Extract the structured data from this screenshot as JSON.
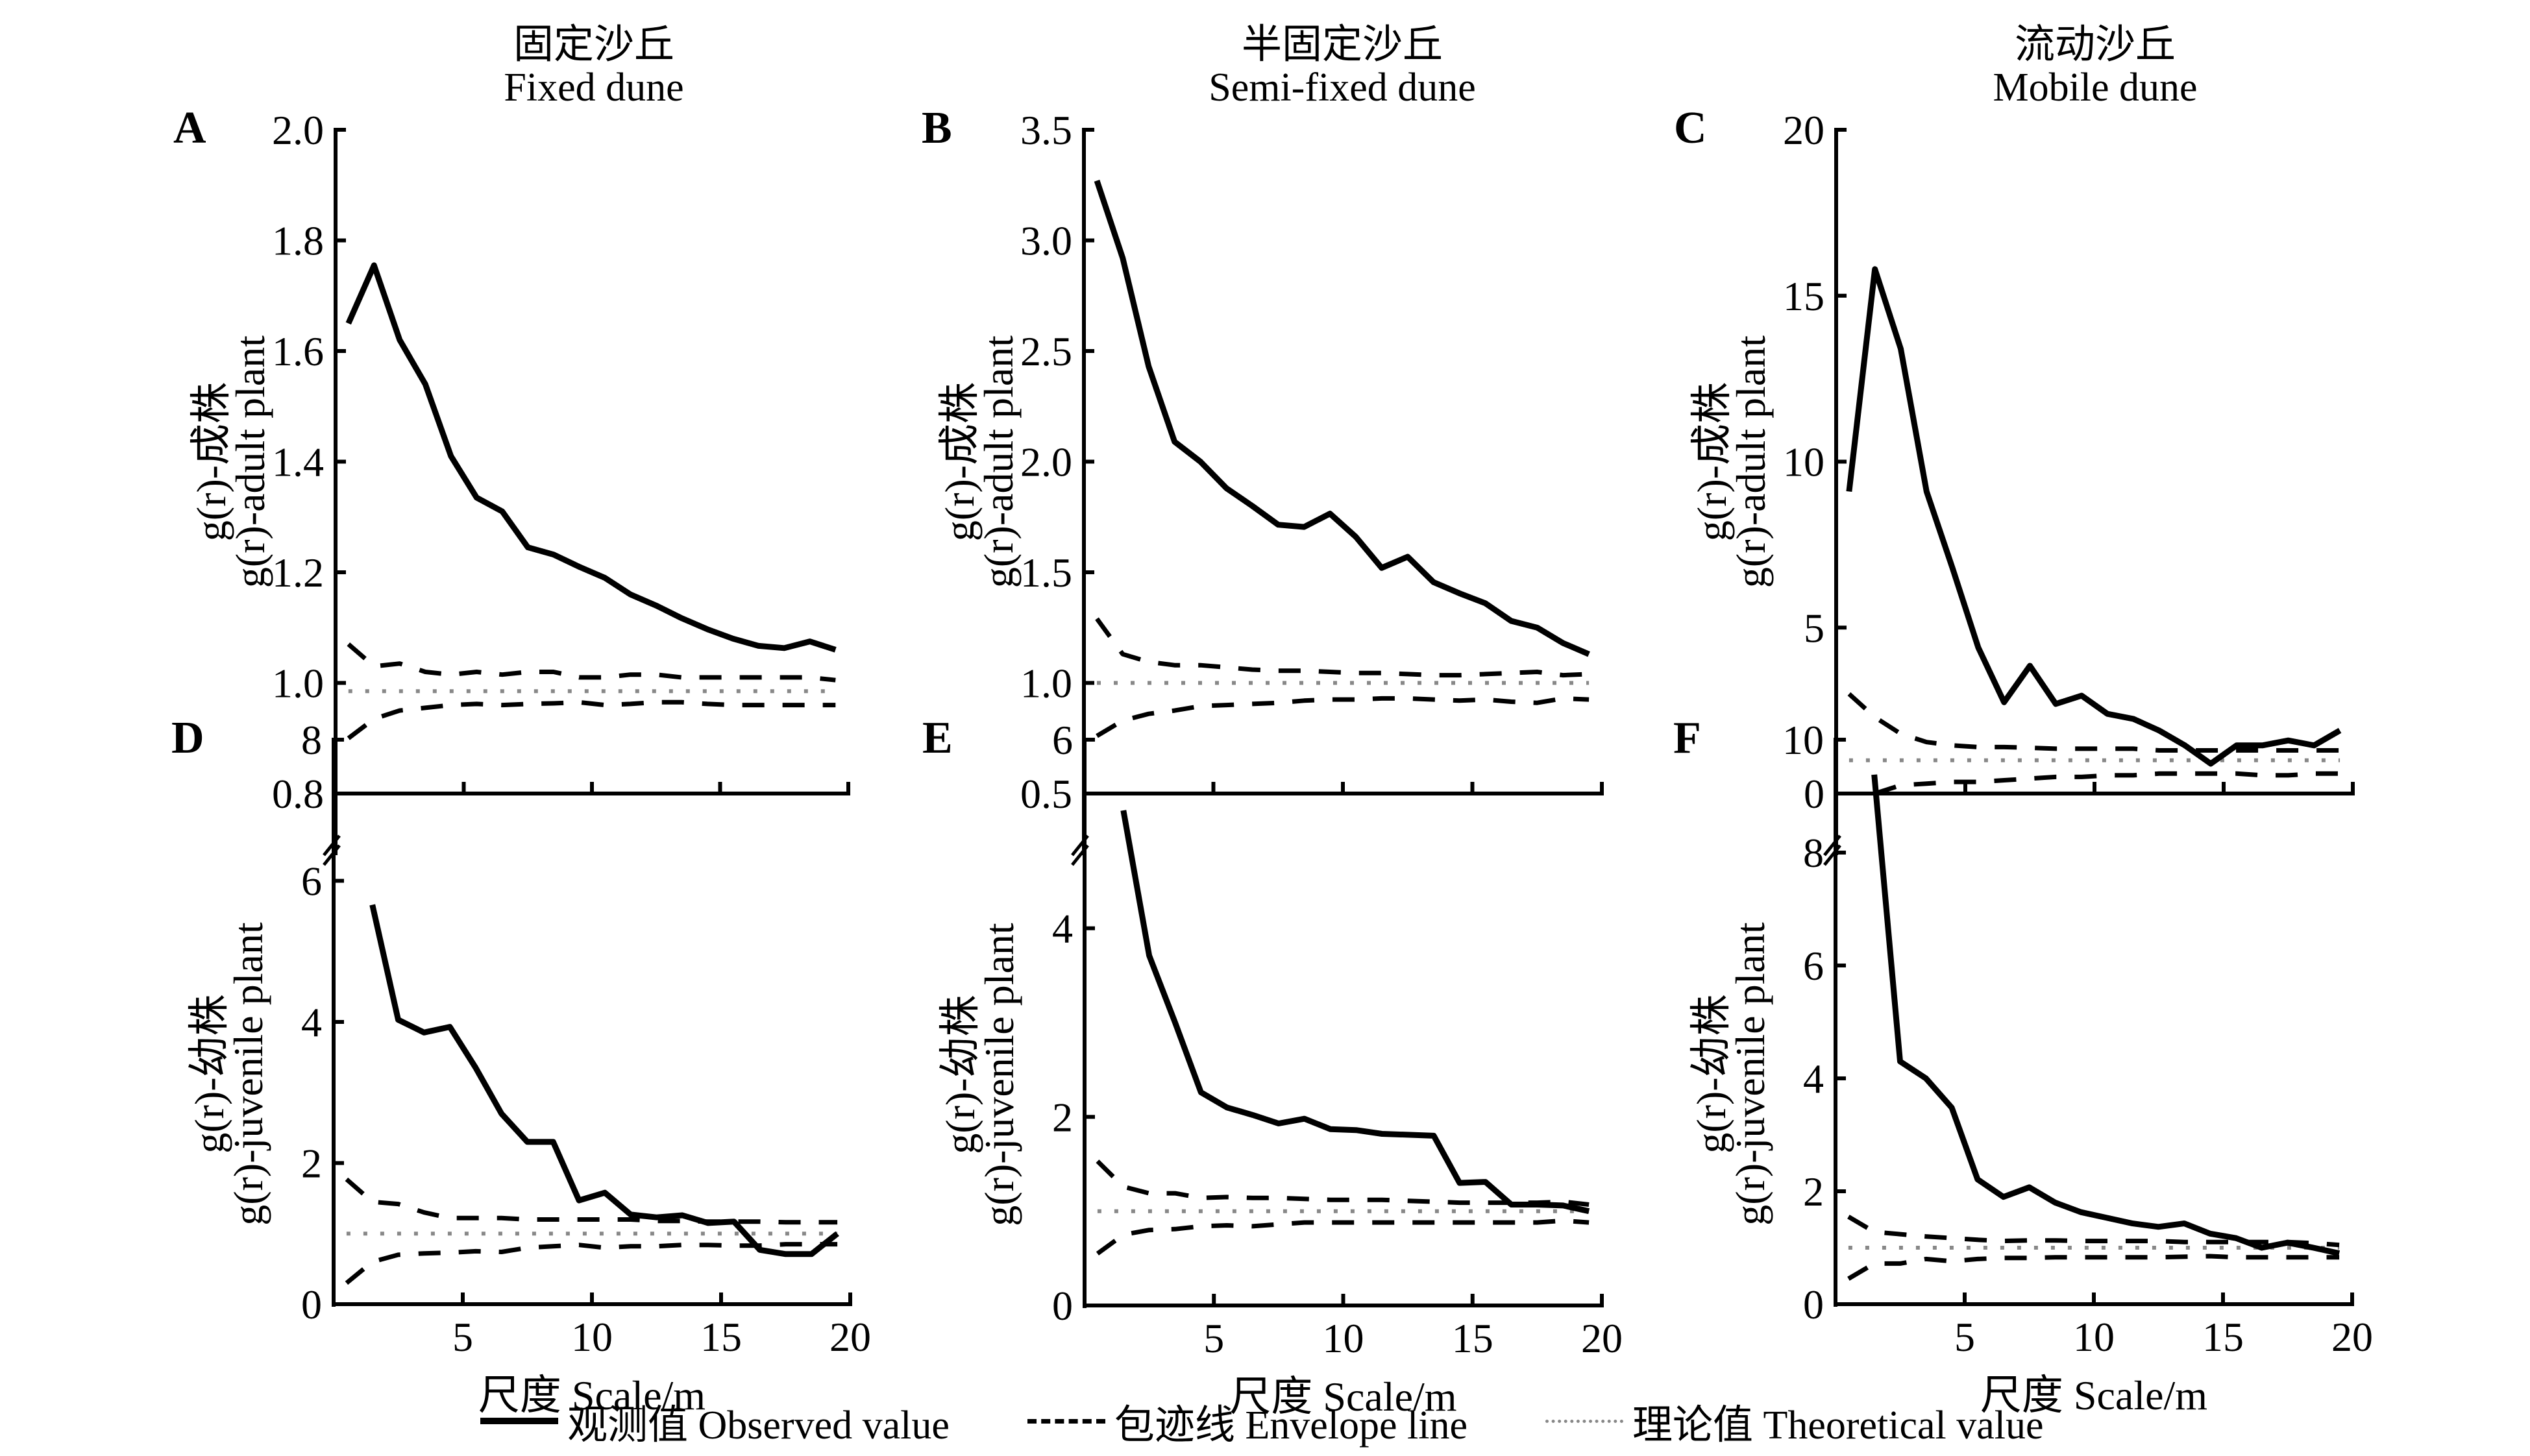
{
  "column_titles": [
    {
      "zh": "固定沙丘",
      "en": "Fixed dune"
    },
    {
      "zh": "半固定沙丘",
      "en": "Semi-fixed dune"
    },
    {
      "zh": "流动沙丘",
      "en": "Mobile dune"
    }
  ],
  "xlabel": "尺度 Scale/m",
  "legend": [
    {
      "key": "observed",
      "label": "观测值 Observed value",
      "style": "solid"
    },
    {
      "key": "envelope",
      "label": "包迹线 Envelope line",
      "style": "dashed"
    },
    {
      "key": "theoretical",
      "label": "理论值 Theoretical value",
      "style": "dotted"
    }
  ],
  "colors": {
    "observed": "#000000",
    "envelope": "#000000",
    "theoretical": "#888888"
  },
  "chart_data": [
    {
      "panel": "A",
      "type": "line",
      "title": "Fixed dune",
      "ylabel_zh": "g(r)-成株",
      "ylabel_en": "g(r)-adult plant",
      "xlabel": "尺度 Scale/m",
      "xlim": [
        0,
        20
      ],
      "xticks": [
        5,
        10,
        15,
        20
      ],
      "ylim": [
        0.8,
        2.0
      ],
      "yticks": [
        "0.8",
        "1.0",
        "1.2",
        "1.4",
        "1.6",
        "1.8",
        "2.0"
      ],
      "x": [
        0.5,
        1.5,
        2.5,
        3.5,
        4.5,
        5.5,
        6.5,
        7.5,
        8.5,
        9.5,
        10.5,
        11.5,
        12.5,
        13.5,
        14.5,
        15.5,
        16.5,
        17.5,
        18.5,
        19.5
      ],
      "series": [
        {
          "name": "Observed value",
          "values": [
            1.65,
            1.755,
            1.62,
            1.54,
            1.41,
            1.335,
            1.31,
            1.245,
            1.232,
            1.21,
            1.19,
            1.16,
            1.14,
            1.117,
            1.097,
            1.08,
            1.067,
            1.063,
            1.075,
            1.06
          ]
        },
        {
          "name": "Envelope upper",
          "values": [
            1.07,
            1.03,
            1.035,
            1.02,
            1.015,
            1.02,
            1.015,
            1.02,
            1.02,
            1.01,
            1.01,
            1.015,
            1.015,
            1.01,
            1.01,
            1.01,
            1.01,
            1.01,
            1.01,
            1.005
          ]
        },
        {
          "name": "Envelope lower",
          "values": [
            0.9,
            0.935,
            0.95,
            0.955,
            0.96,
            0.962,
            0.96,
            0.962,
            0.963,
            0.965,
            0.96,
            0.962,
            0.965,
            0.965,
            0.962,
            0.96,
            0.96,
            0.96,
            0.96,
            0.96
          ]
        },
        {
          "name": "Theoretical value",
          "values": [
            0.985,
            0.985,
            0.985,
            0.985,
            0.985,
            0.985,
            0.985,
            0.985,
            0.985,
            0.985,
            0.985,
            0.985,
            0.985,
            0.985,
            0.985,
            0.985,
            0.985,
            0.985,
            0.985,
            0.985
          ]
        }
      ]
    },
    {
      "panel": "B",
      "type": "line",
      "title": "Semi-fixed dune",
      "ylabel_zh": "g(r)-成株",
      "ylabel_en": "g(r)-adult plant",
      "xlabel": "尺度 Scale/m",
      "xlim": [
        0,
        20
      ],
      "xticks": [
        5,
        10,
        15,
        20
      ],
      "ylim": [
        0.5,
        3.5
      ],
      "yticks": [
        "0.5",
        "1.0",
        "1.5",
        "2.0",
        "2.5",
        "3.0",
        "3.5"
      ],
      "x": [
        0.5,
        1.5,
        2.5,
        3.5,
        4.5,
        5.5,
        6.5,
        7.5,
        8.5,
        9.5,
        10.5,
        11.5,
        12.5,
        13.5,
        14.5,
        15.5,
        16.5,
        17.5,
        18.5,
        19.5
      ],
      "series": [
        {
          "name": "Observed value",
          "values": [
            3.27,
            2.92,
            2.43,
            2.09,
            2.0,
            1.88,
            1.8,
            1.715,
            1.705,
            1.765,
            1.66,
            1.52,
            1.57,
            1.455,
            1.405,
            1.36,
            1.28,
            1.25,
            1.18,
            1.13
          ]
        },
        {
          "name": "Envelope upper",
          "values": [
            1.29,
            1.13,
            1.095,
            1.08,
            1.08,
            1.07,
            1.06,
            1.055,
            1.055,
            1.05,
            1.045,
            1.045,
            1.04,
            1.035,
            1.035,
            1.04,
            1.045,
            1.05,
            1.035,
            1.04
          ]
        },
        {
          "name": "Envelope lower",
          "values": [
            0.76,
            0.83,
            0.86,
            0.875,
            0.895,
            0.9,
            0.905,
            0.91,
            0.92,
            0.925,
            0.925,
            0.93,
            0.93,
            0.925,
            0.92,
            0.925,
            0.915,
            0.91,
            0.93,
            0.925
          ]
        },
        {
          "name": "Theoretical value",
          "values": [
            1,
            1,
            1,
            1,
            1,
            1,
            1,
            1,
            1,
            1,
            1,
            1,
            1,
            1,
            1,
            1,
            1,
            1,
            1,
            1
          ]
        }
      ]
    },
    {
      "panel": "C",
      "type": "line",
      "title": "Mobile dune",
      "ylabel_zh": "g(r)-成株",
      "ylabel_en": "g(r)-adult plant",
      "xlabel": "尺度 Scale/m",
      "xlim": [
        0,
        20
      ],
      "xticks": [
        5,
        10,
        15,
        20
      ],
      "ylim": [
        0,
        20
      ],
      "yticks": [
        "0",
        "5",
        "10",
        "15",
        "20"
      ],
      "x": [
        0.5,
        1.5,
        2.5,
        3.5,
        4.5,
        5.5,
        6.5,
        7.5,
        8.5,
        9.5,
        10.5,
        11.5,
        12.5,
        13.5,
        14.5,
        15.5,
        16.5,
        17.5,
        18.5,
        19.5
      ],
      "series": [
        {
          "name": "Observed value",
          "values": [
            9.1,
            15.8,
            13.4,
            9.1,
            6.8,
            4.4,
            2.75,
            3.85,
            2.7,
            2.95,
            2.4,
            2.25,
            1.9,
            1.45,
            0.9,
            1.45,
            1.45,
            1.6,
            1.45,
            1.9
          ]
        },
        {
          "name": "Envelope upper",
          "values": [
            3.0,
            2.3,
            1.8,
            1.55,
            1.45,
            1.4,
            1.4,
            1.38,
            1.35,
            1.35,
            1.35,
            1.35,
            1.3,
            1.3,
            1.3,
            1.3,
            1.3,
            1.3,
            1.3,
            1.3
          ]
        },
        {
          "name": "Envelope lower",
          "values": [
            null,
            0.0,
            0.25,
            0.3,
            0.35,
            0.35,
            0.4,
            0.45,
            0.5,
            0.5,
            0.55,
            0.55,
            0.6,
            0.6,
            0.6,
            0.6,
            0.55,
            0.55,
            0.6,
            0.6
          ]
        },
        {
          "name": "Theoretical value",
          "values": [
            1,
            1,
            1,
            1,
            1,
            1,
            1,
            1,
            1,
            1,
            1,
            1,
            1,
            1,
            1,
            1,
            1,
            1,
            1,
            1
          ]
        }
      ]
    },
    {
      "panel": "D",
      "type": "line",
      "title": "",
      "ylabel_zh": "g(r)-幼株",
      "ylabel_en": "g(r)-juvenile plant",
      "xlabel": "尺度 Scale/m",
      "xlim": [
        0,
        20
      ],
      "xticks": [
        5,
        10,
        15,
        20
      ],
      "ylim": [
        0,
        8
      ],
      "yticks": [
        "0",
        "2",
        "4",
        "6",
        "8"
      ],
      "x": [
        0.5,
        1.5,
        2.5,
        3.5,
        4.5,
        5.5,
        6.5,
        7.5,
        8.5,
        9.5,
        10.5,
        11.5,
        12.5,
        13.5,
        14.5,
        15.5,
        16.5,
        17.5,
        18.5,
        19.5
      ],
      "series": [
        {
          "name": "Observed value",
          "values": [
            null,
            5.66,
            4.03,
            3.85,
            3.93,
            3.35,
            2.7,
            2.3,
            2.3,
            1.47,
            1.58,
            1.27,
            1.23,
            1.26,
            1.15,
            1.17,
            0.77,
            0.71,
            0.71,
            1.0
          ]
        },
        {
          "name": "Envelope upper",
          "values": [
            1.77,
            1.45,
            1.42,
            1.3,
            1.22,
            1.22,
            1.22,
            1.2,
            1.2,
            1.2,
            1.2,
            1.2,
            1.18,
            1.18,
            1.17,
            1.17,
            1.17,
            1.16,
            1.16,
            1.16
          ]
        },
        {
          "name": "Envelope lower",
          "values": [
            0.3,
            0.6,
            0.7,
            0.72,
            0.73,
            0.75,
            0.74,
            0.8,
            0.82,
            0.84,
            0.8,
            0.82,
            0.82,
            0.84,
            0.84,
            0.83,
            0.83,
            0.85,
            0.85,
            0.85
          ]
        },
        {
          "name": "Theoretical value",
          "values": [
            1,
            1,
            1,
            1,
            1,
            1,
            1,
            1,
            1,
            1,
            1,
            1,
            1,
            1,
            1,
            1,
            1,
            1,
            1,
            1
          ]
        }
      ]
    },
    {
      "panel": "E",
      "type": "line",
      "title": "",
      "ylabel_zh": "g(r)-幼株",
      "ylabel_en": "g(r)-juvenile plant",
      "xlabel": "尺度 Scale/m",
      "xlim": [
        0,
        20
      ],
      "xticks": [
        5,
        10,
        15,
        20
      ],
      "ylim": [
        0,
        6
      ],
      "yticks": [
        "0",
        "2",
        "4",
        "6"
      ],
      "x": [
        0.5,
        1.5,
        2.5,
        3.5,
        4.5,
        5.5,
        6.5,
        7.5,
        8.5,
        9.5,
        10.5,
        11.5,
        12.5,
        13.5,
        14.5,
        15.5,
        16.5,
        17.5,
        18.5,
        19.5
      ],
      "series": [
        {
          "name": "Observed value",
          "values": [
            null,
            5.25,
            3.71,
            3.0,
            2.26,
            2.1,
            2.02,
            1.93,
            1.98,
            1.87,
            1.86,
            1.82,
            1.81,
            1.8,
            1.3,
            1.31,
            1.07,
            1.07,
            1.06,
            1.0
          ]
        },
        {
          "name": "Envelope upper",
          "values": [
            1.53,
            1.26,
            1.19,
            1.19,
            1.14,
            1.15,
            1.14,
            1.14,
            1.13,
            1.12,
            1.12,
            1.12,
            1.11,
            1.1,
            1.09,
            1.09,
            1.09,
            1.09,
            1.1,
            1.07
          ]
        },
        {
          "name": "Envelope lower",
          "values": [
            0.55,
            0.75,
            0.8,
            0.81,
            0.84,
            0.85,
            0.84,
            0.86,
            0.88,
            0.88,
            0.88,
            0.88,
            0.88,
            0.88,
            0.88,
            0.88,
            0.88,
            0.88,
            0.9,
            0.88
          ]
        },
        {
          "name": "Theoretical value",
          "values": [
            1,
            1,
            1,
            1,
            1,
            1,
            1,
            1,
            1,
            1,
            1,
            1,
            1,
            1,
            1,
            1,
            1,
            1,
            1,
            1
          ]
        }
      ]
    },
    {
      "panel": "F",
      "type": "line",
      "title": "",
      "ylabel_zh": "g(r)-幼株",
      "ylabel_en": "g(r)-juvenile plant",
      "xlabel": "尺度 Scale/m",
      "xlim": [
        0,
        20
      ],
      "xticks": [
        5,
        10,
        15,
        20
      ],
      "ylim": [
        0,
        10
      ],
      "yticks": [
        "0",
        "2",
        "4",
        "6",
        "8",
        "10"
      ],
      "x": [
        0.5,
        1.5,
        2.5,
        3.5,
        4.5,
        5.5,
        6.5,
        7.5,
        8.5,
        9.5,
        10.5,
        11.5,
        12.5,
        13.5,
        14.5,
        15.5,
        16.5,
        17.5,
        18.5,
        19.5
      ],
      "series": [
        {
          "name": "Observed value",
          "values": [
            null,
            9.38,
            4.3,
            4.0,
            3.48,
            2.21,
            1.9,
            2.07,
            1.8,
            1.63,
            1.53,
            1.43,
            1.37,
            1.43,
            1.25,
            1.17,
            1.0,
            1.09,
            1.0,
            0.9
          ]
        },
        {
          "name": "Envelope upper",
          "values": [
            1.55,
            1.28,
            1.24,
            1.2,
            1.17,
            1.14,
            1.12,
            1.13,
            1.13,
            1.12,
            1.12,
            1.12,
            1.12,
            1.1,
            1.1,
            1.1,
            1.1,
            1.1,
            1.08,
            1.05
          ]
        },
        {
          "name": "Envelope lower",
          "values": [
            0.45,
            0.72,
            0.72,
            0.8,
            0.76,
            0.8,
            0.82,
            0.82,
            0.83,
            0.83,
            0.83,
            0.83,
            0.83,
            0.84,
            0.85,
            0.83,
            0.83,
            0.83,
            0.83,
            0.83
          ]
        },
        {
          "name": "Theoretical value",
          "values": [
            1,
            1,
            1,
            1,
            1,
            1,
            1,
            1,
            1,
            1,
            1,
            1,
            1,
            1,
            1,
            1,
            1,
            1,
            1,
            1
          ]
        }
      ]
    }
  ]
}
